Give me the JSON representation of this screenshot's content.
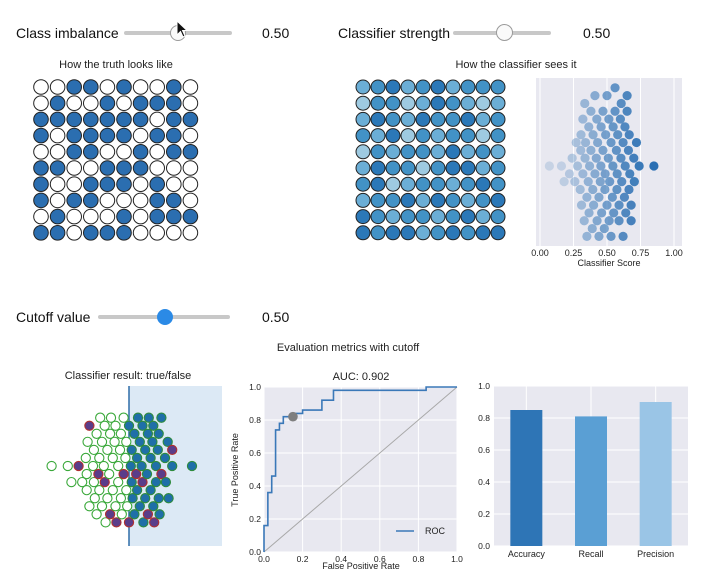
{
  "controls": {
    "class_imbalance": {
      "label": "Class imbalance",
      "value_text": "0.50",
      "value": 0.5
    },
    "classifier_strength": {
      "label": "Classifier strength",
      "value_text": "0.50",
      "value": 0.5
    },
    "cutoff": {
      "label": "Cutoff value",
      "value_text": "0.50",
      "value": 0.5
    }
  },
  "truth_panel": {
    "title": "How the truth looks like",
    "grid": [
      "0011010010",
      "0100101110",
      "1111111011",
      "1011110110",
      "0011001011",
      "1100111000",
      "1001110100",
      "1011000110",
      "0100010111",
      "1101110000"
    ]
  },
  "classifier_panel": {
    "title": "How the classifier sees it",
    "shades": [
      "#c6dbef",
      "#9ecae1",
      "#6baed6",
      "#4292c6",
      "#2b78b8"
    ],
    "grid": [
      "2342342333",
      "1331243212",
      "2432433423",
      "3241323313",
      "1323324232",
      "2433134423",
      "3412332343",
      "2334243234",
      "4323323423",
      "4344234344"
    ]
  },
  "score_chart": {
    "xlabel": "Classifier Score",
    "xticks": [
      "0.00",
      "0.25",
      "0.50",
      "0.75",
      "1.00"
    ]
  },
  "eval_title": "Evaluation metrics with cutoff",
  "result_panel": {
    "title": "Classifier result: true/false"
  },
  "roc_chart": {
    "title": "AUC: 0.902",
    "xlabel": "False Positive Rate",
    "ylabel": "True Positive Rate",
    "legend": "ROC",
    "ticks": [
      "0.0",
      "0.2",
      "0.4",
      "0.6",
      "0.8",
      "1.0"
    ]
  },
  "chart_data": [
    {
      "type": "scatter",
      "title": "",
      "xlabel": "Classifier Score",
      "xlim": [
        0,
        1
      ],
      "xticks": [
        0,
        0.25,
        0.5,
        0.75,
        1.0
      ],
      "note_values": "swarm of classifier scores, approximate",
      "values": [
        0.07,
        0.16,
        0.18,
        0.22,
        0.24,
        0.26,
        0.27,
        0.28,
        0.3,
        0.31,
        0.32,
        0.33,
        0.34,
        0.35,
        0.36,
        0.37,
        0.38,
        0.39,
        0.4,
        0.41,
        0.42,
        0.43,
        0.44,
        0.45,
        0.46,
        0.47,
        0.48,
        0.49,
        0.5,
        0.51,
        0.52,
        0.53,
        0.54,
        0.55,
        0.56,
        0.57,
        0.58,
        0.59,
        0.6,
        0.61,
        0.62,
        0.63,
        0.64,
        0.65,
        0.66,
        0.67,
        0.68,
        0.7,
        0.72,
        0.74,
        0.85
      ]
    },
    {
      "type": "line",
      "title": "AUC: 0.902",
      "xlabel": "False Positive Rate",
      "ylabel": "True Positive Rate",
      "xlim": [
        0,
        1
      ],
      "ylim": [
        0,
        1
      ],
      "series": [
        {
          "name": "ROC",
          "x": [
            0,
            0,
            0.02,
            0.02,
            0.04,
            0.04,
            0.06,
            0.06,
            0.08,
            0.08,
            0.1,
            0.1,
            0.14,
            0.14,
            0.2,
            0.2,
            0.3,
            0.3,
            0.36,
            0.36,
            0.84,
            0.84,
            1.0
          ],
          "y": [
            0,
            0.16,
            0.16,
            0.36,
            0.36,
            0.46,
            0.46,
            0.74,
            0.74,
            0.78,
            0.78,
            0.82,
            0.82,
            0.84,
            0.84,
            0.86,
            0.86,
            0.92,
            0.92,
            0.98,
            0.98,
            1.0,
            1.0
          ]
        },
        {
          "x": [
            0,
            1
          ],
          "y": [
            0,
            1
          ]
        }
      ],
      "marker": {
        "x": 0.15,
        "y": 0.82
      }
    },
    {
      "type": "bar",
      "title": "",
      "categories": [
        "Accuracy",
        "Recall",
        "Precision"
      ],
      "values": [
        0.85,
        0.81,
        0.9
      ],
      "ylim": [
        0,
        1.0
      ],
      "yticks": [
        0.0,
        0.2,
        0.4,
        0.6,
        0.8,
        1.0
      ],
      "colors": [
        "#2e75b6",
        "#5a9fd4",
        "#9ac5e6"
      ]
    }
  ]
}
